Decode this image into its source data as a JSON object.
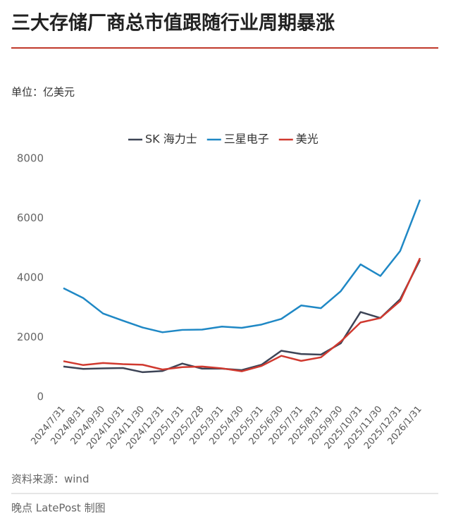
{
  "chart_data": {
    "type": "line",
    "title": "三大存储厂商总市值跟随行业周期暴涨",
    "unit_label": "单位：亿美元",
    "source": "资料来源：wind",
    "credit": "晚点 LatePost 制图",
    "categories": [
      "2024/7/31",
      "2024/8/31",
      "2024/9/30",
      "2024/10/31",
      "2024/11/30",
      "2024/12/31",
      "2025/1/31",
      "2025/2/28",
      "2025/3/31",
      "2025/4/30",
      "2025/5/31",
      "2025/6/30",
      "2025/7/31",
      "2025/8/31",
      "2025/9/30",
      "2025/10/31",
      "2025/11/30",
      "2025/12/31",
      "2026/1/31"
    ],
    "series": [
      {
        "name": "SK 海力士",
        "color": "#3d4456",
        "values": [
          1020,
          940,
          960,
          970,
          830,
          870,
          1120,
          950,
          950,
          900,
          1080,
          1550,
          1440,
          1420,
          1800,
          2850,
          2650,
          3280,
          4600
        ]
      },
      {
        "name": "三星电子",
        "color": "#1f88c5",
        "values": [
          3650,
          3320,
          2800,
          2560,
          2330,
          2170,
          2250,
          2260,
          2360,
          2320,
          2430,
          2620,
          3070,
          2980,
          3550,
          4450,
          4060,
          4900,
          6620
        ]
      },
      {
        "name": "美光",
        "color": "#d0392f",
        "values": [
          1200,
          1070,
          1140,
          1100,
          1080,
          920,
          1000,
          1020,
          960,
          860,
          1040,
          1380,
          1210,
          1330,
          1860,
          2500,
          2650,
          3220,
          4660
        ]
      }
    ],
    "ylim": [
      0,
      8000
    ],
    "yticks": [
      0,
      2000,
      4000,
      6000,
      8000
    ],
    "grid": false
  }
}
